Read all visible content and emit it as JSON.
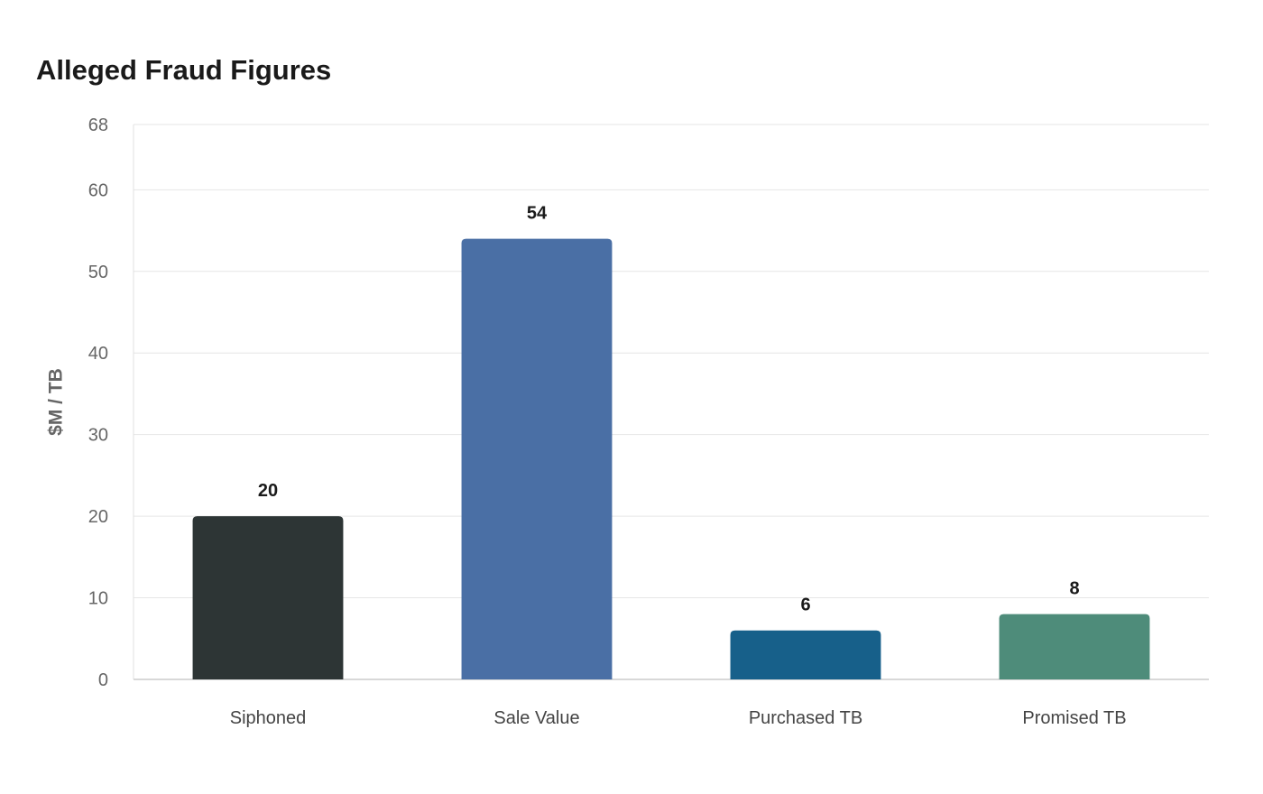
{
  "chart_data": {
    "type": "bar",
    "title": "Alleged Fraud Figures",
    "xlabel": "",
    "ylabel": "$M / TB",
    "categories": [
      "Siphoned",
      "Sale Value",
      "Purchased TB",
      "Promised TB"
    ],
    "values": [
      20,
      54,
      6,
      8
    ],
    "colors": [
      "#2d3535",
      "#4a6fa5",
      "#17608a",
      "#4e8c7a"
    ],
    "ylim": [
      0,
      68
    ],
    "yticks": [
      0,
      10,
      20,
      30,
      40,
      50,
      60,
      68
    ],
    "grid": true,
    "legend": "none"
  }
}
